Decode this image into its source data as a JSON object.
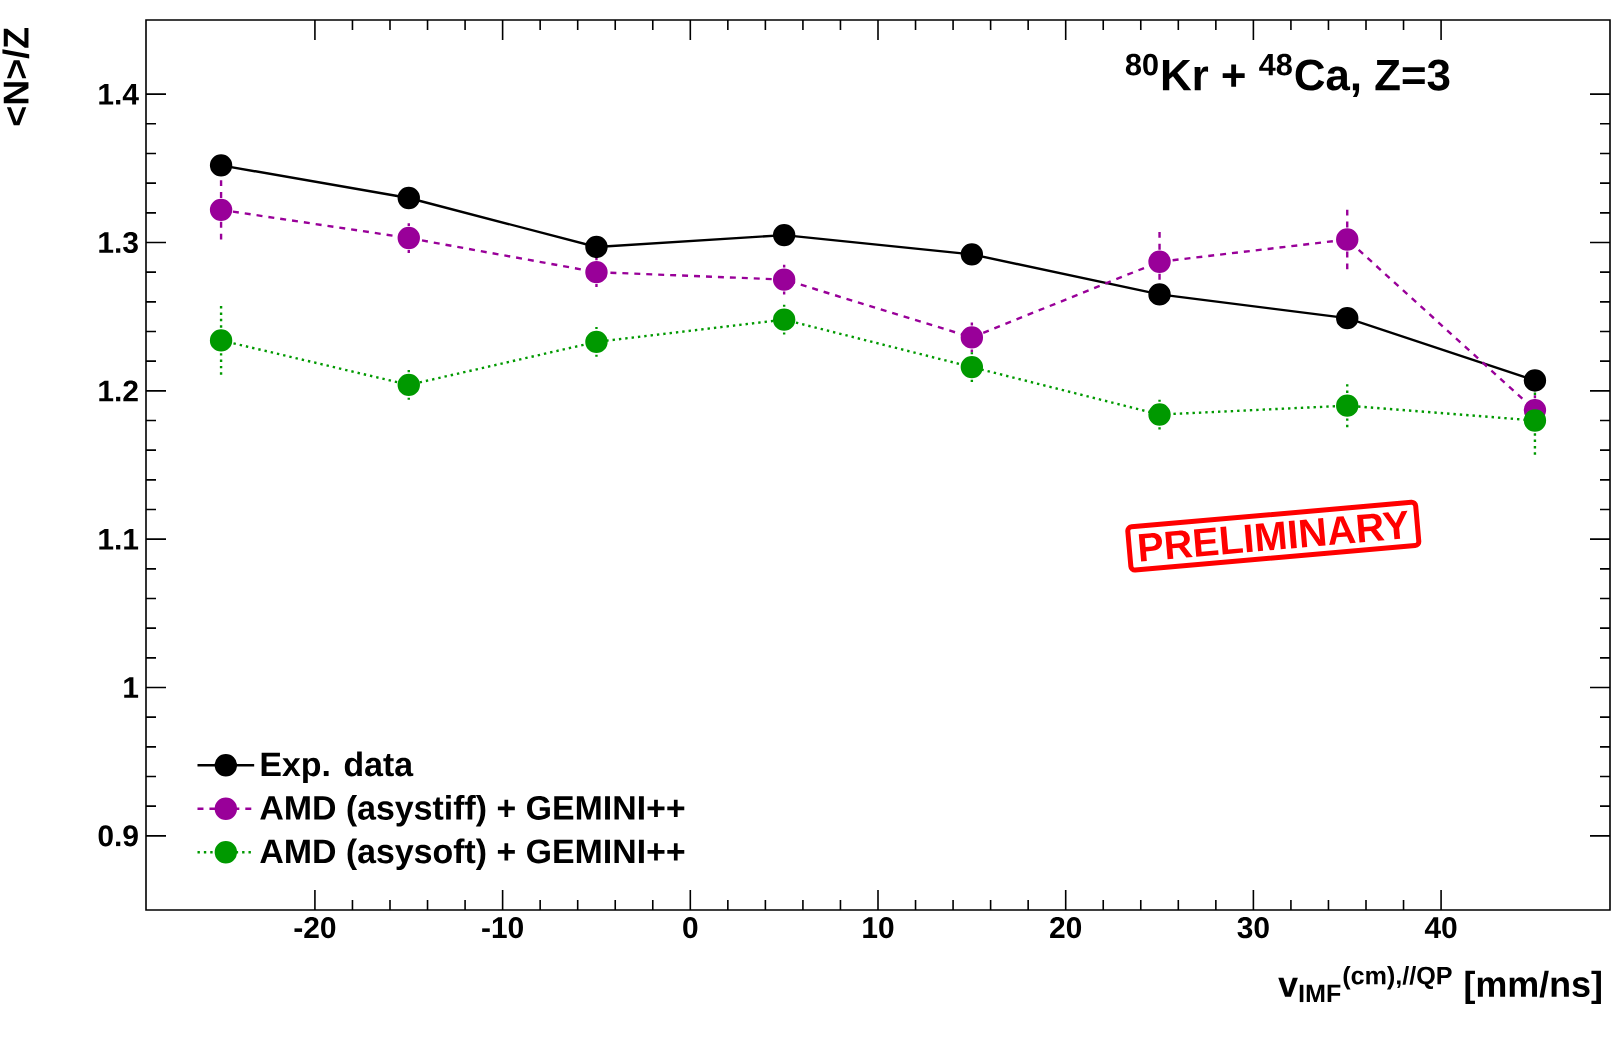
{
  "chart_data": {
    "type": "line",
    "title": "$^{80}$Kr + $^{48}$Ca, Z=3",
    "xlabel": "v$_{IMF}$$^{(cm),//QP}$ [mm/ns]",
    "ylabel": "<N>/Z",
    "x": [
      -25,
      -15,
      -5,
      5,
      15,
      25,
      35,
      45
    ],
    "series": [
      {
        "name": "Exp. data",
        "color": "#000000",
        "line_style": "solid",
        "values": [
          1.352,
          1.33,
          1.297,
          1.305,
          1.292,
          1.265,
          1.249,
          1.207
        ]
      },
      {
        "name": "AMD (asystiff) + GEMINI++",
        "color": "#990099",
        "line_style": "dashed",
        "values": [
          1.322,
          1.303,
          1.28,
          1.275,
          1.236,
          1.287,
          1.302,
          1.187
        ],
        "errors": [
          0.02,
          0.01,
          0.01,
          0.01,
          0.01,
          0.02,
          0.02,
          0.01
        ]
      },
      {
        "name": "AMD (asysoft) + GEMINI++",
        "color": "#009900",
        "line_style": "dotted",
        "values": [
          1.234,
          1.204,
          1.233,
          1.248,
          1.216,
          1.184,
          1.19,
          1.18
        ],
        "errors": [
          0.025,
          0.01,
          0.01,
          0.01,
          0.01,
          0.01,
          0.015,
          0.025
        ]
      }
    ],
    "xlim": [
      -29,
      49
    ],
    "ylim": [
      0.85,
      1.45
    ],
    "xticks": [
      -20,
      -10,
      0,
      10,
      20,
      30,
      40
    ],
    "yticks": [
      0.9,
      1,
      1.1,
      1.2,
      1.3,
      1.4
    ],
    "marker": "circle",
    "legend": "bottom left",
    "grid": false,
    "annotations": [
      "PRELIMINARY"
    ]
  }
}
